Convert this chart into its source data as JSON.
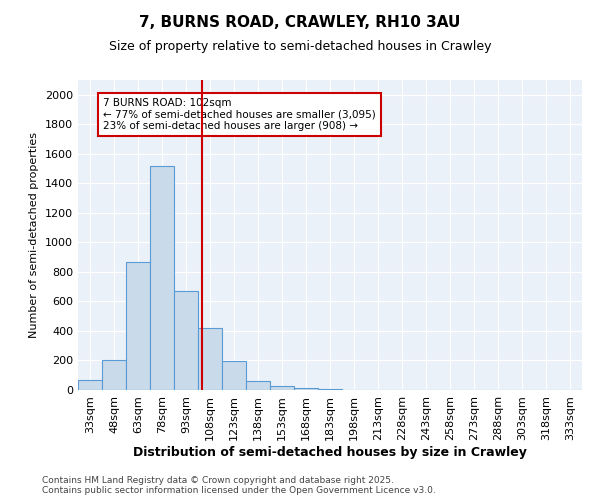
{
  "title_line1": "7, BURNS ROAD, CRAWLEY, RH10 3AU",
  "title_line2": "Size of property relative to semi-detached houses in Crawley",
  "xlabel": "Distribution of semi-detached houses by size in Crawley",
  "ylabel": "Number of semi-detached properties",
  "bins": [
    "33sqm",
    "48sqm",
    "63sqm",
    "78sqm",
    "93sqm",
    "108sqm",
    "123sqm",
    "138sqm",
    "153sqm",
    "168sqm",
    "183sqm",
    "198sqm",
    "213sqm",
    "228sqm",
    "243sqm",
    "258sqm",
    "273sqm",
    "288sqm",
    "303sqm",
    "318sqm",
    "333sqm"
  ],
  "values": [
    65,
    200,
    870,
    1520,
    670,
    420,
    195,
    60,
    25,
    15,
    10,
    3,
    0,
    0,
    0,
    0,
    0,
    0,
    0,
    0,
    0
  ],
  "bar_color": "#c9daea",
  "bar_edge_color": "#5b9bd5",
  "vline_x": 4.67,
  "vline_color": "#cc0000",
  "annotation_text": "7 BURNS ROAD: 102sqm\n← 77% of semi-detached houses are smaller (3,095)\n23% of semi-detached houses are larger (908) →",
  "box_color": "#cc0000",
  "ylim": [
    0,
    2100
  ],
  "yticks": [
    0,
    200,
    400,
    600,
    800,
    1000,
    1200,
    1400,
    1600,
    1800,
    2000
  ],
  "footnote": "Contains HM Land Registry data © Crown copyright and database right 2025.\nContains public sector information licensed under the Open Government Licence v3.0.",
  "plot_bg_color": "#eaf1f8"
}
